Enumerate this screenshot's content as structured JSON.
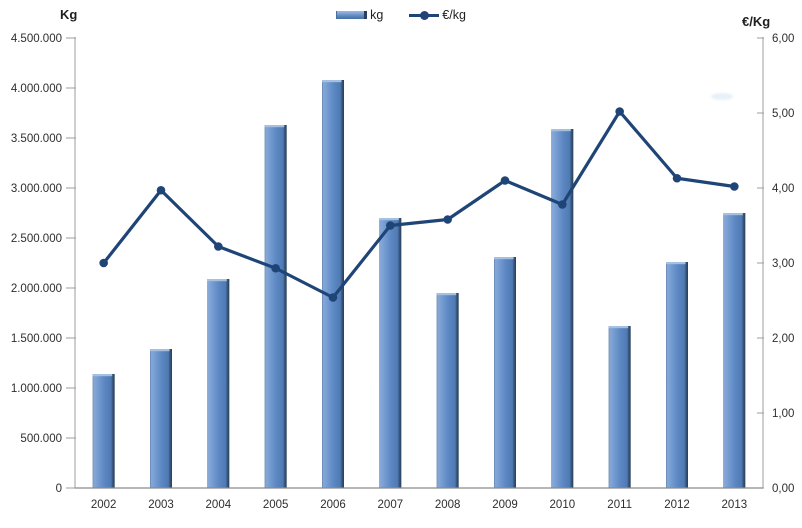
{
  "chart_data": {
    "type": "combo",
    "categories": [
      "2002",
      "2003",
      "2004",
      "2005",
      "2006",
      "2007",
      "2008",
      "2009",
      "2010",
      "2011",
      "2012",
      "2013"
    ],
    "series": [
      {
        "name": "kg",
        "type": "bar",
        "axis": "left",
        "values": [
          1140000,
          1390000,
          2090000,
          3630000,
          4080000,
          2700000,
          1950000,
          2310000,
          3590000,
          1620000,
          2260000,
          2750000
        ]
      },
      {
        "name": "€/kg",
        "type": "line",
        "axis": "right",
        "values": [
          3.0,
          3.97,
          3.22,
          2.93,
          2.54,
          3.5,
          3.58,
          4.1,
          3.78,
          5.02,
          4.13,
          4.02
        ]
      }
    ],
    "left_axis": {
      "title": "Kg",
      "min": 0,
      "max": 4500000,
      "tick_step": 500000,
      "tick_labels": [
        "4.500.000",
        "4.000.000",
        "3.500.000",
        "3.000.000",
        "2.500.000",
        "2.000.000",
        "1.500.000",
        "1.000.000",
        "500.000",
        "0"
      ]
    },
    "right_axis": {
      "title": "€/Kg",
      "min": 0,
      "max": 6,
      "tick_step": 1,
      "tick_labels": [
        "6,00",
        "5,00",
        "4,00",
        "3,00",
        "2,00",
        "1,00",
        "0,00"
      ]
    },
    "legend": {
      "position": "top",
      "items": [
        {
          "label": "kg",
          "swatch": "bar"
        },
        {
          "label": "€/kg",
          "swatch": "line-marker"
        }
      ]
    },
    "grid": false,
    "colors": {
      "bar_fill": "#5d88c4",
      "bar_highlight": "#87a8d8",
      "bar_shadow": "#283e55",
      "bar_bevel_top": "#a9c2e2",
      "line": "#1f4577",
      "axis_line": "#9d9d9d",
      "bottom_axis_line": "#8a8a8a",
      "text": "#2e2e2e"
    }
  }
}
